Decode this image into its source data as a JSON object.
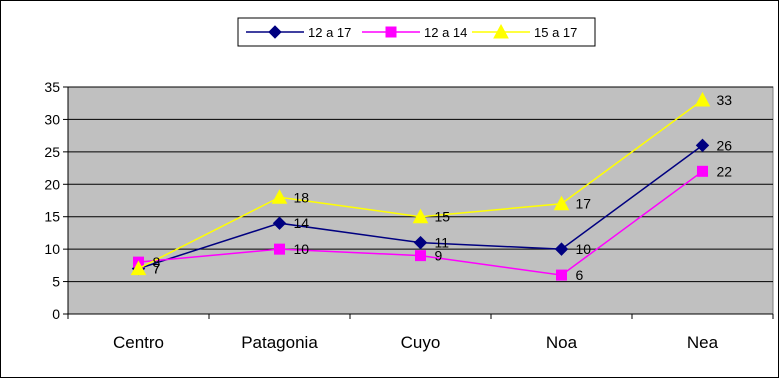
{
  "chart_data": {
    "type": "line",
    "categories": [
      "Centro",
      "Patagonia",
      "Cuyo",
      "Noa",
      "Nea"
    ],
    "ylim": [
      0,
      35
    ],
    "yticks": [
      0,
      5,
      10,
      15,
      20,
      25,
      30,
      35
    ],
    "grid": true,
    "legend_position": "top-center",
    "plot_background": "#c0c0c0",
    "series": [
      {
        "name": "12 a 17",
        "values": [
          7,
          14,
          11,
          10,
          26
        ],
        "color": "#000080",
        "marker": "diamond",
        "labels": [
          "7",
          "14",
          "11",
          "10",
          "26"
        ]
      },
      {
        "name": "12 a 14",
        "values": [
          8,
          10,
          9,
          6,
          22
        ],
        "color": "#ff00ff",
        "marker": "square",
        "labels": [
          "8",
          "10",
          "9",
          "6",
          "22"
        ]
      },
      {
        "name": "15 a 17",
        "values": [
          7,
          18,
          15,
          17,
          33
        ],
        "color": "#ffff00",
        "marker": "triangle",
        "labels": [
          "7",
          "18",
          "15",
          "17",
          "33"
        ]
      }
    ]
  }
}
